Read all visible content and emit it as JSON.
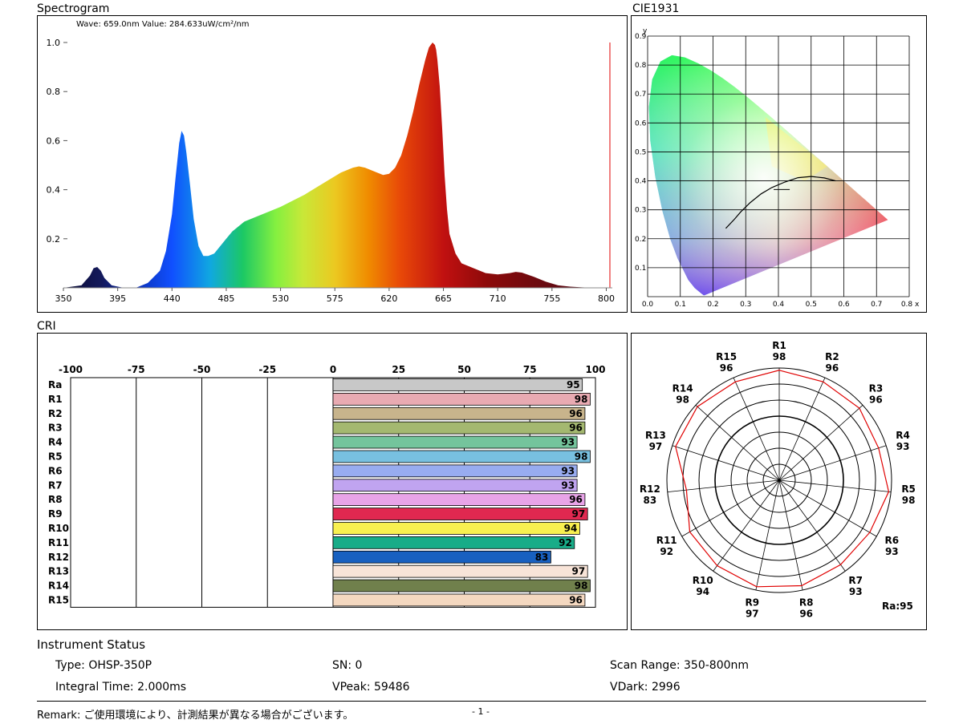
{
  "titles": {
    "spectrogram": "Spectrogram",
    "cie": "CIE1931",
    "cri": "CRI"
  },
  "spectrogram": {
    "readout": "Wave: 659.0nm  Value: 284.633uW/cm²/nm"
  },
  "chart_data": [
    {
      "type": "area",
      "name": "spectrogram",
      "x_ticks": [
        350,
        395,
        440,
        485,
        530,
        575,
        620,
        665,
        710,
        755,
        800
      ],
      "y_ticks": [
        0.2,
        0.4,
        0.6,
        0.8,
        1.0
      ],
      "xlim": [
        350,
        805
      ],
      "ylim": [
        0,
        1.0
      ],
      "x": [
        350,
        365,
        372,
        375,
        378,
        381,
        384,
        390,
        400,
        410,
        420,
        430,
        435,
        440,
        443,
        446,
        448,
        450,
        452,
        455,
        458,
        462,
        466,
        470,
        475,
        480,
        485,
        490,
        500,
        510,
        520,
        530,
        540,
        550,
        560,
        570,
        580,
        590,
        595,
        600,
        610,
        615,
        620,
        625,
        630,
        635,
        640,
        645,
        650,
        653,
        656,
        658,
        659,
        660,
        662,
        664,
        666,
        668,
        670,
        675,
        680,
        690,
        700,
        710,
        720,
        725,
        730,
        740,
        750,
        760,
        770,
        780,
        790,
        800
      ],
      "values": [
        0.0,
        0.01,
        0.05,
        0.08,
        0.085,
        0.07,
        0.04,
        0.01,
        0.0,
        0.0,
        0.02,
        0.07,
        0.15,
        0.3,
        0.45,
        0.59,
        0.64,
        0.62,
        0.55,
        0.42,
        0.28,
        0.17,
        0.13,
        0.13,
        0.14,
        0.17,
        0.2,
        0.23,
        0.27,
        0.29,
        0.31,
        0.33,
        0.355,
        0.38,
        0.41,
        0.44,
        0.47,
        0.49,
        0.495,
        0.49,
        0.47,
        0.46,
        0.465,
        0.49,
        0.54,
        0.62,
        0.72,
        0.83,
        0.93,
        0.98,
        1.0,
        0.99,
        0.97,
        0.93,
        0.82,
        0.65,
        0.46,
        0.32,
        0.22,
        0.14,
        0.1,
        0.08,
        0.06,
        0.055,
        0.06,
        0.065,
        0.062,
        0.045,
        0.025,
        0.01,
        0.005,
        0.002,
        0.0,
        0.0
      ],
      "cursor_nm": 803
    },
    {
      "type": "scatter",
      "name": "CIE1931",
      "x_ticks": [
        0.0,
        0.1,
        0.2,
        0.3,
        0.4,
        0.5,
        0.6,
        0.7
      ],
      "x_end_label": "0.8",
      "x_axis_label": "x",
      "y_ticks": [
        0.1,
        0.2,
        0.3,
        0.4,
        0.5,
        0.6,
        0.7,
        0.8,
        0.9
      ],
      "y_axis_label": "y",
      "xlim": [
        0,
        0.8
      ],
      "ylim": [
        0,
        0.9
      ],
      "point": {
        "x": 0.41,
        "y": 0.37
      }
    },
    {
      "type": "bar",
      "name": "CRI",
      "x_ticks": [
        -100,
        -75,
        -50,
        -25,
        0,
        25,
        50,
        75,
        100
      ],
      "xlim": [
        -100,
        100
      ],
      "categories": [
        "Ra",
        "R1",
        "R2",
        "R3",
        "R4",
        "R5",
        "R6",
        "R7",
        "R8",
        "R9",
        "R10",
        "R11",
        "R12",
        "R13",
        "R14",
        "R15"
      ],
      "values": [
        95,
        98,
        96,
        96,
        93,
        98,
        93,
        93,
        96,
        97,
        94,
        92,
        83,
        97,
        98,
        96
      ],
      "colors": [
        "#c8c8c8",
        "#e8aab2",
        "#c8b48c",
        "#a4b870",
        "#74c49c",
        "#78c0e0",
        "#98acf0",
        "#c0a4f0",
        "#e8a4e8",
        "#e02850",
        "#f8f050",
        "#18ac88",
        "#1860c0",
        "#f8e4d8",
        "#70804c",
        "#f4d8c0"
      ]
    },
    {
      "type": "polar",
      "name": "CRI-radar",
      "categories": [
        "R1",
        "R2",
        "R3",
        "R4",
        "R5",
        "R6",
        "R7",
        "R8",
        "R9",
        "R10",
        "R11",
        "R12",
        "R13",
        "R14",
        "R15"
      ],
      "values": [
        98,
        96,
        96,
        93,
        98,
        93,
        93,
        96,
        97,
        94,
        92,
        83,
        97,
        98,
        96
      ],
      "rmax": 100,
      "summary_label": "Ra:95"
    }
  ],
  "status": {
    "title": "Instrument Status",
    "type": "Type: OHSP-350P",
    "sn": "SN: 0",
    "scan_range": "Scan Range: 350-800nm",
    "integral_time": "Integral Time: 2.000ms",
    "vpeak": "VPeak: 59486",
    "vdark": "VDark: 2996"
  },
  "remark": "Remark: ご使用環境により、計測結果が異なる場合がございます。",
  "page_number": "- 1 -"
}
